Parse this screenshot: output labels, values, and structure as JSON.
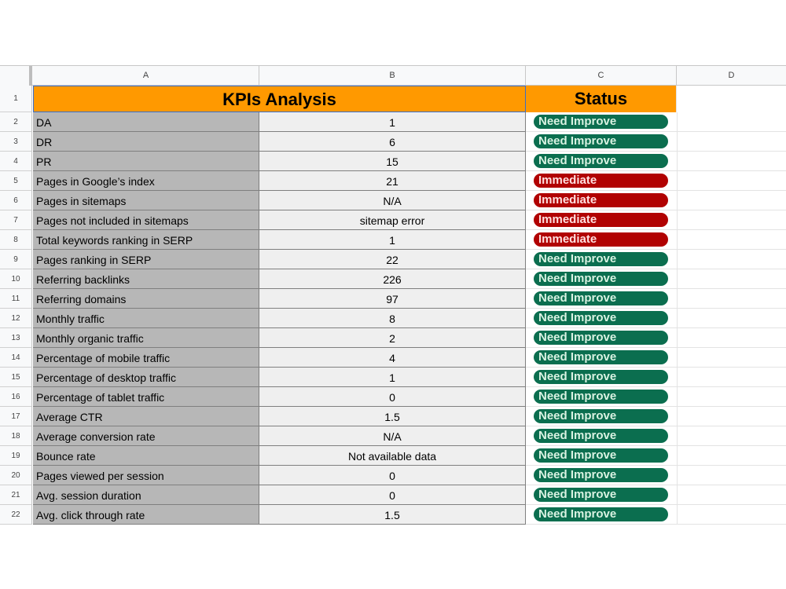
{
  "columns": [
    "A",
    "B",
    "C",
    "D"
  ],
  "header": {
    "title": "KPIs Analysis",
    "status_title": "Status"
  },
  "rows": [
    {
      "num": "2",
      "label": "DA",
      "value": "1",
      "status": "Need Improve",
      "tone": "green"
    },
    {
      "num": "3",
      "label": "DR",
      "value": "6",
      "status": "Need Improve",
      "tone": "green"
    },
    {
      "num": "4",
      "label": "PR",
      "value": "15",
      "status": "Need Improve",
      "tone": "green"
    },
    {
      "num": "5",
      "label": "Pages in Google’s index",
      "value": "21",
      "status": "Immediate",
      "tone": "red"
    },
    {
      "num": "6",
      "label": "Pages in sitemaps",
      "value": "N/A",
      "status": "Immediate",
      "tone": "red"
    },
    {
      "num": "7",
      "label": "Pages not included in sitemaps",
      "value": "sitemap error",
      "status": "Immediate",
      "tone": "red"
    },
    {
      "num": "8",
      "label": "Total keywords ranking in SERP",
      "value": "1",
      "status": "Immediate",
      "tone": "red"
    },
    {
      "num": "9",
      "label": "Pages ranking in SERP",
      "value": "22",
      "status": "Need Improve",
      "tone": "green"
    },
    {
      "num": "10",
      "label": "Referring backlinks",
      "value": "226",
      "status": "Need Improve",
      "tone": "green"
    },
    {
      "num": "11",
      "label": "Referring domains",
      "value": "97",
      "status": "Need Improve",
      "tone": "green"
    },
    {
      "num": "12",
      "label": "Monthly traffic",
      "value": "8",
      "status": "Need Improve",
      "tone": "green"
    },
    {
      "num": "13",
      "label": "Monthly organic traffic",
      "value": "2",
      "status": "Need Improve",
      "tone": "green"
    },
    {
      "num": "14",
      "label": "Percentage of mobile traffic",
      "value": "4",
      "status": "Need Improve",
      "tone": "green"
    },
    {
      "num": "15",
      "label": "Percentage of desktop traffic",
      "value": "1",
      "status": "Need Improve",
      "tone": "green"
    },
    {
      "num": "16",
      "label": "Percentage of tablet traffic",
      "value": "0",
      "status": "Need Improve",
      "tone": "green"
    },
    {
      "num": "17",
      "label": "Average CTR",
      "value": "1.5",
      "status": "Need Improve",
      "tone": "green"
    },
    {
      "num": "18",
      "label": "Average conversion rate",
      "value": "N/A",
      "status": "Need Improve",
      "tone": "green"
    },
    {
      "num": "19",
      "label": "Bounce rate",
      "value": "Not available data",
      "status": "Need Improve",
      "tone": "green"
    },
    {
      "num": "20",
      "label": "Pages viewed per session",
      "value": "0",
      "status": "Need Improve",
      "tone": "green"
    },
    {
      "num": "21",
      "label": "Avg. session duration",
      "value": "0",
      "status": "Need Improve",
      "tone": "green"
    },
    {
      "num": "22",
      "label": "Avg. click through rate",
      "value": "1.5",
      "status": "Need Improve",
      "tone": "green"
    }
  ],
  "colors": {
    "header_fill": "#ff9900",
    "label_fill": "#b7b7b7",
    "value_fill": "#efefef",
    "green_chip": "#0b6e4f",
    "red_chip": "#b10202"
  }
}
